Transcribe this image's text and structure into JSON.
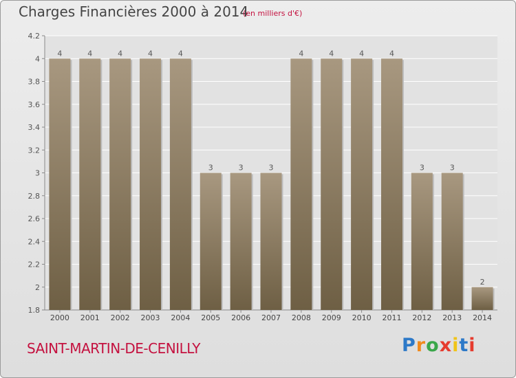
{
  "title": "Charges Financières 2000 à 2014",
  "subtitle": "(en milliers d'€)",
  "commune": "SAINT-MARTIN-DE-CENILLY",
  "logo_text": "Proxiti",
  "logo_colors": [
    "#2d79c8",
    "#f08a1c",
    "#3aa74a",
    "#e63b2e",
    "#f0c419",
    "#2d79c8",
    "#e63b2e"
  ],
  "colors": {
    "bar_top": "#a89880",
    "bar_bottom": "#6e5f44",
    "grid": "#ffffff",
    "accent": "#c4113f",
    "text": "#444444"
  },
  "chart_data": {
    "type": "bar",
    "categories": [
      "2000",
      "2001",
      "2002",
      "2003",
      "2004",
      "2005",
      "2006",
      "2007",
      "2008",
      "2009",
      "2010",
      "2011",
      "2012",
      "2013",
      "2014"
    ],
    "values": [
      4,
      4,
      4,
      4,
      4,
      3,
      3,
      3,
      4,
      4,
      4,
      4,
      3,
      3,
      2
    ],
    "data_labels": [
      "4",
      "4",
      "4",
      "4",
      "4",
      "3",
      "3",
      "3",
      "4",
      "4",
      "4",
      "4",
      "3",
      "3",
      "2"
    ],
    "ylim": [
      1.8,
      4.2
    ],
    "y_ticks": [
      "1.8",
      "2",
      "2.2",
      "2.4",
      "2.6",
      "2.8",
      "3",
      "3.2",
      "3.4",
      "3.6",
      "3.8",
      "4",
      "4.2"
    ],
    "y_tick_values": [
      1.8,
      2,
      2.2,
      2.4,
      2.6,
      2.8,
      3,
      3.2,
      3.4,
      3.6,
      3.8,
      4,
      4.2
    ],
    "grid": true
  }
}
